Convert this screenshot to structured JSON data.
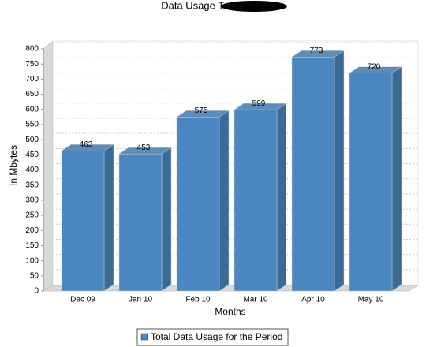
{
  "chart_data": {
    "type": "bar3d",
    "title": "Data Usage Trend",
    "x_label": "Months",
    "y_label": "In Mbytes",
    "categories": [
      "Dec 09",
      "Jan 10",
      "Feb 10",
      "Mar 10",
      "Apr 10",
      "May 10"
    ],
    "series": [
      {
        "name": "Total Data Usage for the Period",
        "color": "#4a86bf",
        "values": [
          463,
          453,
          575,
          599,
          773,
          720
        ]
      }
    ],
    "ylim": [
      0,
      800
    ],
    "yticks": [
      0,
      50,
      100,
      150,
      200,
      250,
      300,
      350,
      400,
      450,
      500,
      550,
      600,
      650,
      700,
      750,
      800
    ],
    "grid": true,
    "legend": "bottom",
    "value_labels_shown": true
  }
}
